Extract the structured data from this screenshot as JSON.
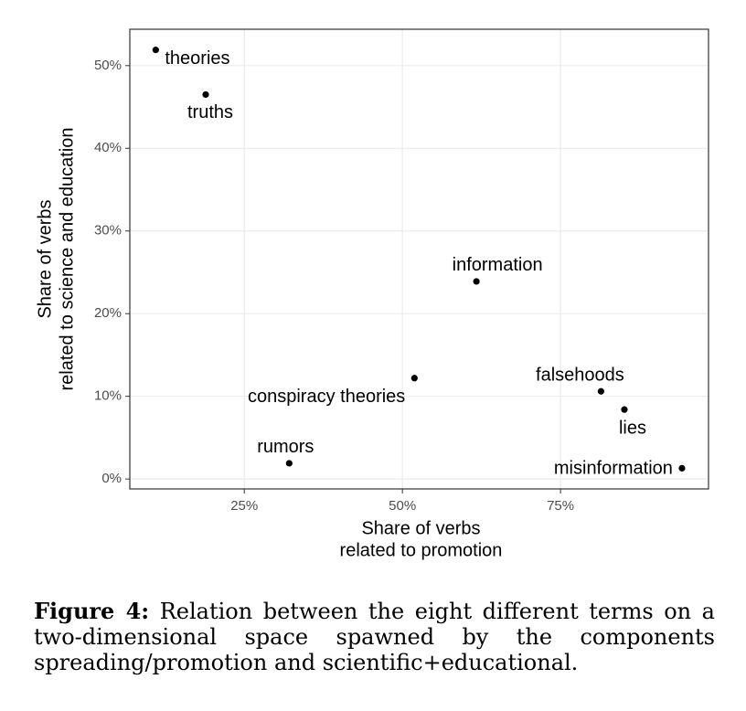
{
  "chart_data": {
    "type": "scatter",
    "xlabel": [
      "Share of verbs",
      "related to promotion"
    ],
    "ylabel": [
      "Share of verbs",
      "related to science and education"
    ],
    "labels": [
      "theories",
      "truths",
      "information",
      "conspiracy theories",
      "falsehoods",
      "lies",
      "misinformation",
      "rumors"
    ],
    "x": [
      11.0,
      18.9,
      61.7,
      51.9,
      81.4,
      85.1,
      94.2,
      32.1
    ],
    "values": [
      51.9,
      46.5,
      23.9,
      12.2,
      10.6,
      8.4,
      1.3,
      1.9
    ],
    "color": "#000000",
    "xlim": [
      6.9,
      98.4
    ],
    "ylim": [
      -1.2,
      54.4
    ],
    "xticks": [
      {
        "value": 25,
        "label": "25%"
      },
      {
        "value": 50,
        "label": "50%"
      },
      {
        "value": 75,
        "label": "75%"
      }
    ],
    "yticks": [
      {
        "value": 0,
        "label": "0%"
      },
      {
        "value": 10,
        "label": "10%"
      },
      {
        "value": 20,
        "label": "20%"
      },
      {
        "value": 30,
        "label": "30%"
      },
      {
        "value": 40,
        "label": "40%"
      },
      {
        "value": 50,
        "label": "50%"
      }
    ],
    "grid": true
  },
  "caption": {
    "label": "Figure 4:",
    "text": "Relation between the eight different terms on a two-dimensional space spawned by the components spreading/promotion and scientific+educational."
  }
}
